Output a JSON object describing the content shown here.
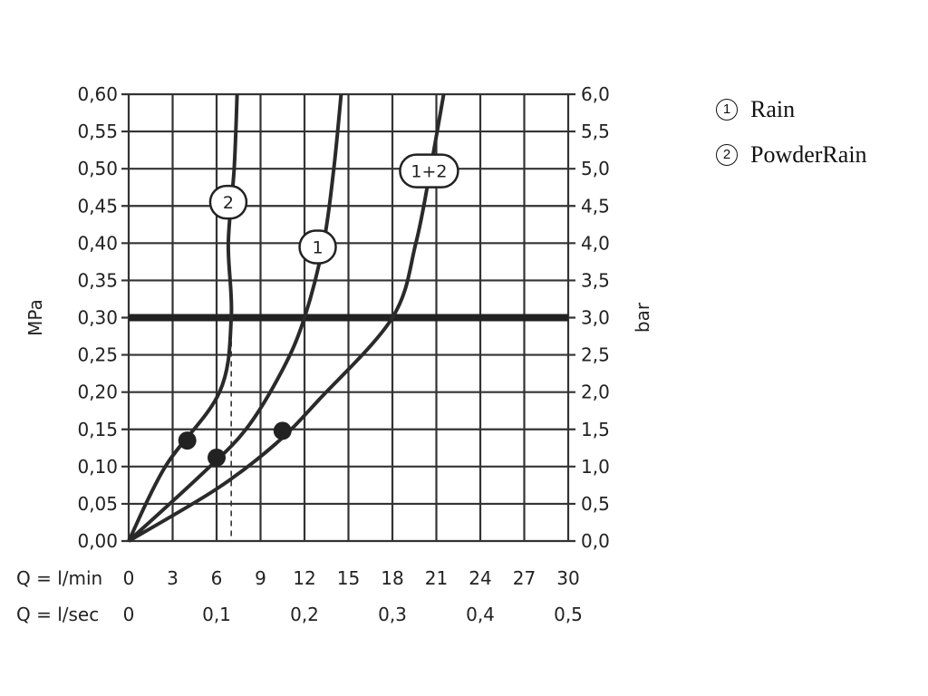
{
  "chart_data": {
    "type": "line",
    "xlabel": "",
    "ylabel": "MPa",
    "y2label": "bar",
    "xlim": [
      0,
      30
    ],
    "ylim": [
      0,
      0.6
    ],
    "grid": true,
    "x_ticks_lmin": [
      "0",
      "3",
      "6",
      "9",
      "12",
      "15",
      "18",
      "21",
      "24",
      "27",
      "30"
    ],
    "x_ticks_lsec": [
      {
        "x": 0,
        "label": "0"
      },
      {
        "x": 6,
        "label": "0,1"
      },
      {
        "x": 12,
        "label": "0,2"
      },
      {
        "x": 18,
        "label": "0,3"
      },
      {
        "x": 24,
        "label": "0,4"
      },
      {
        "x": 30,
        "label": "0,5"
      }
    ],
    "x_row_label_lmin": "Q = l/min",
    "x_row_label_lsec": "Q = l/sec",
    "y_ticks": [
      "0,00",
      "0,05",
      "0,10",
      "0,15",
      "0,20",
      "0,25",
      "0,30",
      "0,35",
      "0,40",
      "0,45",
      "0,50",
      "0,55",
      "0,60"
    ],
    "y2_ticks": [
      "0,0",
      "0,5",
      "1,0",
      "1,5",
      "2,0",
      "2,5",
      "3,0",
      "3,5",
      "4,0",
      "4,5",
      "5,0",
      "5,5",
      "6,0"
    ],
    "reference_line": {
      "y": 0.3
    },
    "reference_drops": [
      7,
      12,
      18
    ],
    "series": [
      {
        "label": "2",
        "points": [
          [
            0,
            0
          ],
          [
            2.5,
            0.1
          ],
          [
            6.2,
            0.2
          ],
          [
            7,
            0.3
          ],
          [
            6.8,
            0.4
          ],
          [
            7.2,
            0.5
          ],
          [
            7.4,
            0.6
          ]
        ],
        "marker": [
          4,
          0.135
        ],
        "bubble": [
          6.8,
          0.455
        ]
      },
      {
        "label": "1",
        "points": [
          [
            0,
            0
          ],
          [
            5,
            0.09
          ],
          [
            8,
            0.15
          ],
          [
            10.5,
            0.23
          ],
          [
            12,
            0.3
          ],
          [
            13.3,
            0.4
          ],
          [
            14,
            0.5
          ],
          [
            14.5,
            0.6
          ]
        ],
        "marker": [
          6,
          0.112
        ],
        "bubble": [
          12.9,
          0.395
        ]
      },
      {
        "label": "1+2",
        "points": [
          [
            0,
            0
          ],
          [
            6,
            0.07
          ],
          [
            10,
            0.13
          ],
          [
            13,
            0.19
          ],
          [
            18,
            0.3
          ],
          [
            19.6,
            0.4
          ],
          [
            20.6,
            0.5
          ],
          [
            21.5,
            0.6
          ]
        ],
        "marker": [
          10.5,
          0.148
        ],
        "bubble": [
          20.5,
          0.497
        ]
      }
    ]
  },
  "legend": [
    {
      "num": "1",
      "label": "Rain"
    },
    {
      "num": "2",
      "label": "PowderRain"
    }
  ]
}
